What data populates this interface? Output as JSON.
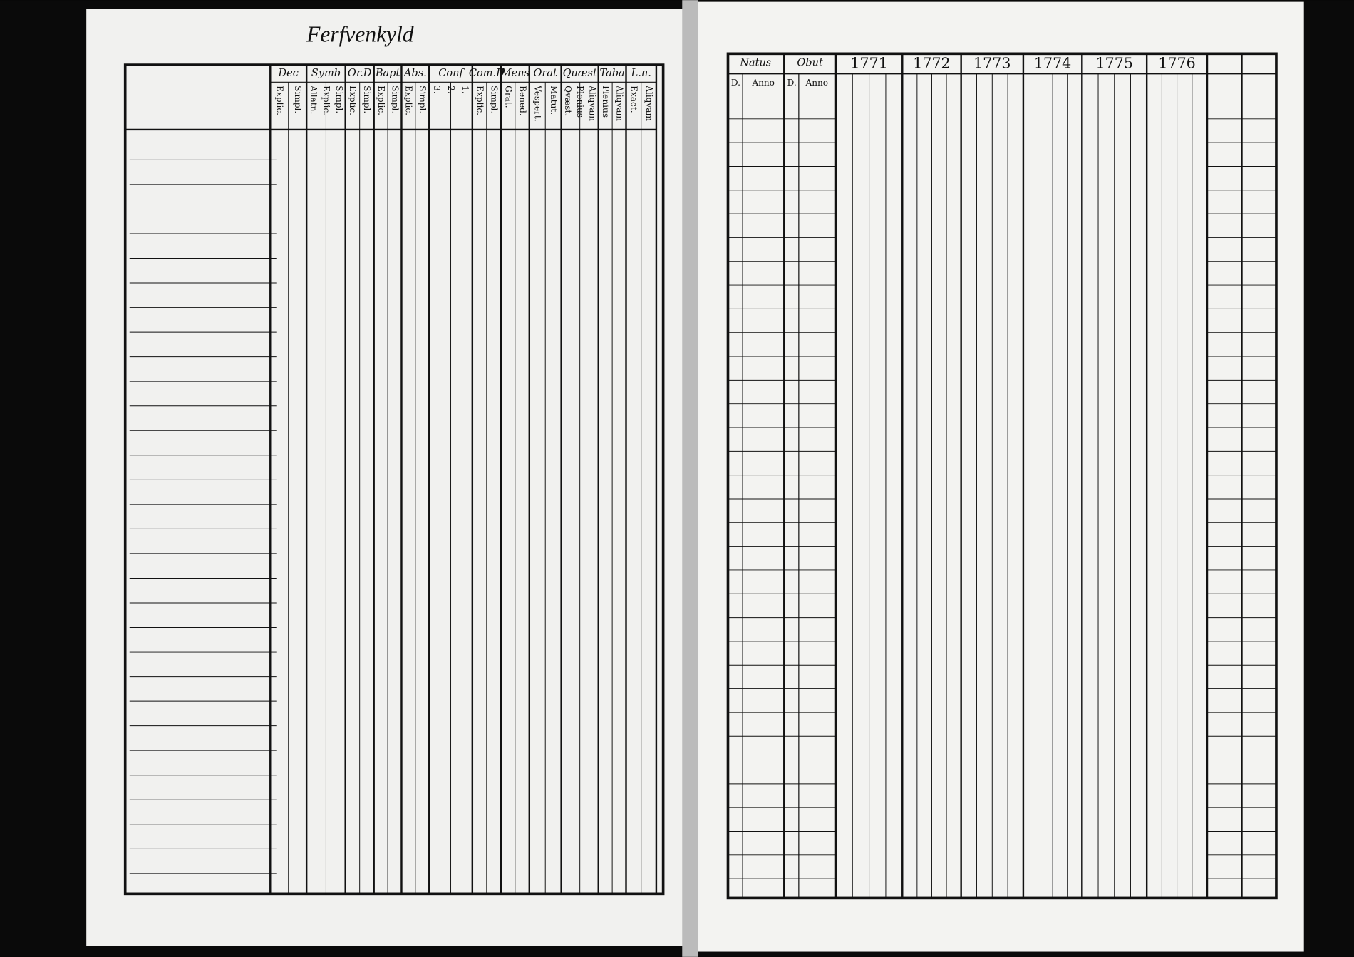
{
  "left_page": {
    "title": "Ferfvenkyld",
    "columns": [
      {
        "label": "Dec",
        "sub": [
          "Explic.",
          "Simpl."
        ]
      },
      {
        "label": "Symb",
        "sub": [
          "Allatn.",
          "Explic.",
          "Simpl."
        ]
      },
      {
        "label": "Or.D",
        "sub": [
          "Explic.",
          "Simpl."
        ]
      },
      {
        "label": "Bapt",
        "sub": [
          "Explic.",
          "Simpl."
        ]
      },
      {
        "label": "Abs.",
        "sub": [
          "Explic.",
          "Simpl."
        ]
      },
      {
        "label": "Conf",
        "sub": [
          "3.",
          "2.",
          "1."
        ]
      },
      {
        "label": "Com.D",
        "sub": [
          "Explic.",
          "Simpl."
        ]
      },
      {
        "label": "Mens",
        "sub": [
          "Grat.",
          "Bened."
        ]
      },
      {
        "label": "Orat",
        "sub": [
          "Vespert.",
          "Matut."
        ]
      },
      {
        "label": "Quæst",
        "sub": [
          "Qvæst.",
          "Plenius",
          "Aliqvam"
        ]
      },
      {
        "label": "Taba",
        "sub": [
          "Plenius",
          "Aliqvam"
        ]
      },
      {
        "label": "L.n.",
        "sub": [
          "Exact.",
          "Aliqvam"
        ]
      }
    ]
  },
  "right_page": {
    "natus": "Natus",
    "obut": "Obut",
    "day": "D.",
    "anno": "Anno",
    "years": [
      "1771",
      "1772",
      "1773",
      "1774",
      "1775",
      "1776"
    ]
  }
}
